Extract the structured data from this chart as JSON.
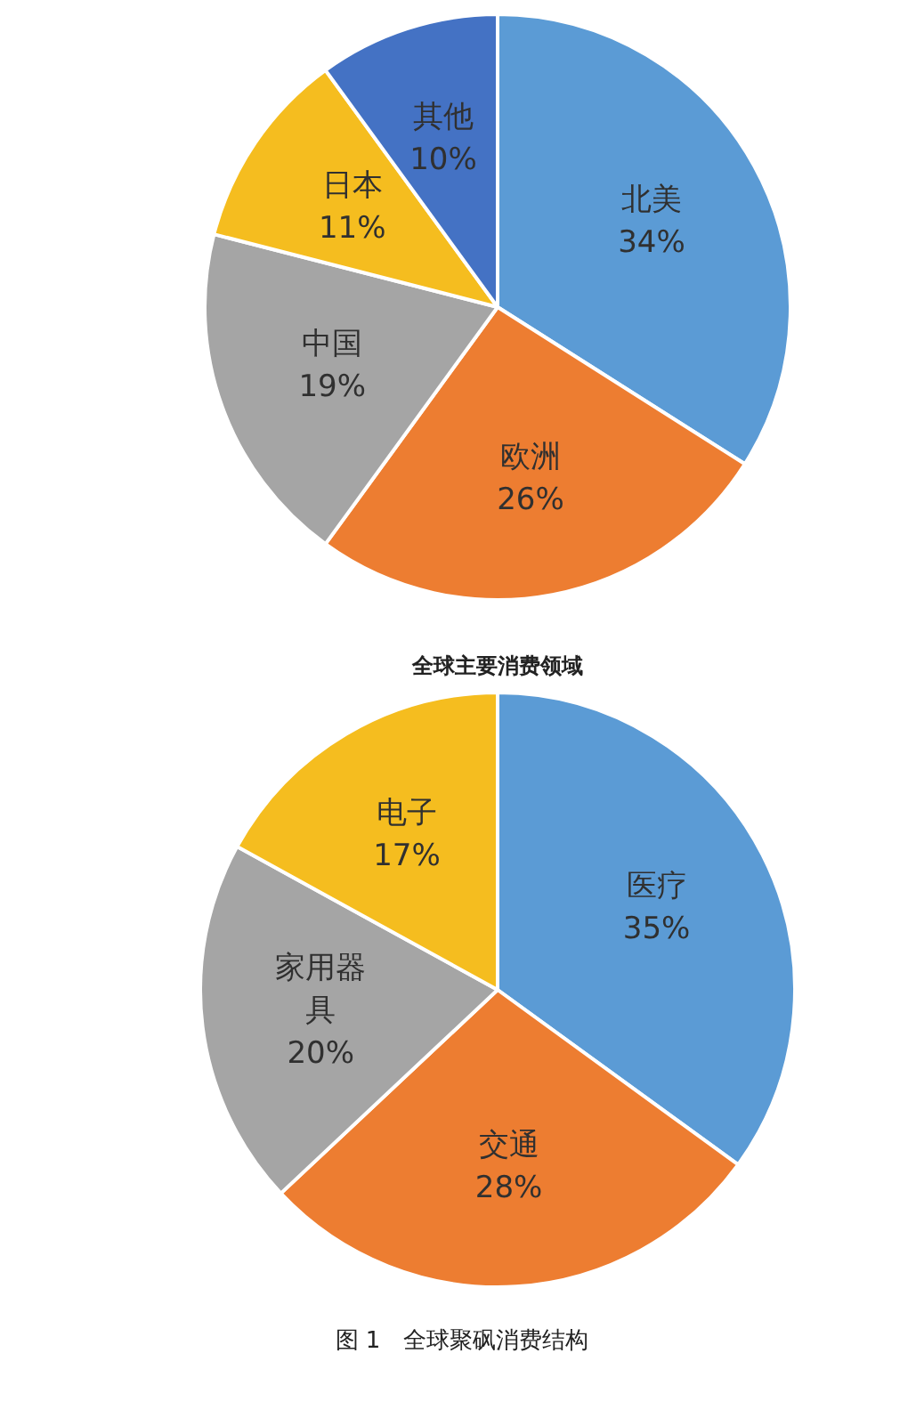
{
  "chart_data": [
    {
      "type": "pie",
      "categories": [
        "北美",
        "欧洲",
        "中国",
        "日本",
        "其他"
      ],
      "values": [
        34,
        26,
        19,
        11,
        10
      ],
      "colors": [
        "#5b9bd5",
        "#ed7d31",
        "#a5a5a5",
        "#f5bd1f",
        "#4472c4"
      ],
      "value_labels": [
        "34%",
        "26%",
        "19%",
        "11%",
        "10%"
      ],
      "legend": false
    },
    {
      "type": "pie",
      "title": "全球主要消费领域",
      "categories": [
        "医疗",
        "交通",
        "家用器具",
        "电子"
      ],
      "values": [
        35,
        28,
        20,
        17
      ],
      "colors": [
        "#5b9bd5",
        "#ed7d31",
        "#a5a5a5",
        "#f5bd1f"
      ],
      "value_labels": [
        "35%",
        "28%",
        "20%",
        "17%"
      ],
      "legend": false,
      "annotations": [
        "图 1　全球聚砜消费结构"
      ]
    }
  ]
}
